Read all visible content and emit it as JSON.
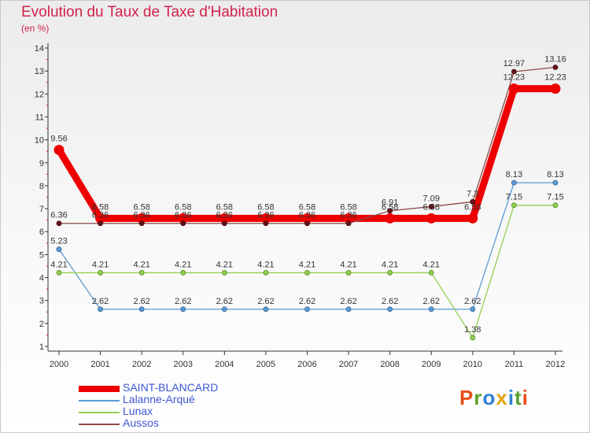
{
  "header": {
    "title": "Evolution du Taux de Taxe d'Habitation",
    "subtitle": "(en %)"
  },
  "brand": {
    "text": "Proxiti",
    "letter_colors": [
      "#e84d18",
      "#5aa02c",
      "#2f7fd0",
      "#e2a411",
      "#2f7fd0",
      "#5aa02c",
      "#e84d18"
    ]
  },
  "chart_data": {
    "type": "line",
    "title": "Evolution du Taux de Taxe d'Habitation",
    "ylabel": "(en %)",
    "xlabel": "",
    "ylim": [
      1,
      14
    ],
    "yticks": [
      1,
      2,
      3,
      4,
      5,
      6,
      7,
      8,
      9,
      10,
      11,
      12,
      13,
      14
    ],
    "x": [
      "2000",
      "2001",
      "2002",
      "2003",
      "2004",
      "2005",
      "2006",
      "2007",
      "2008",
      "2009",
      "2010",
      "2011",
      "2012"
    ],
    "grid": false,
    "legend_position": "bottom-left",
    "series": [
      {
        "name": "SAINT-BLANCARD",
        "color": "#ee0000",
        "values": [
          9.56,
          6.58,
          6.58,
          6.58,
          6.58,
          6.58,
          6.58,
          6.58,
          6.58,
          6.58,
          6.58,
          12.23,
          12.23
        ],
        "labels": [
          "9.56",
          "6.58",
          "6.58",
          "6.58",
          "6.58",
          "6.58",
          "6.58",
          "6.58",
          "6.58",
          "6.58",
          "6.58",
          "12.23",
          "12.23"
        ]
      },
      {
        "name": "Lalanne-Arqué",
        "color": "#5b9bd5",
        "values": [
          5.23,
          2.62,
          2.62,
          2.62,
          2.62,
          2.62,
          2.62,
          2.62,
          2.62,
          2.62,
          2.62,
          8.13,
          8.13
        ],
        "labels": [
          "5.23",
          "2.62",
          "2.62",
          "2.62",
          "2.62",
          "2.62",
          "2.62",
          "2.62",
          "2.62",
          "2.62",
          "2.62",
          "8.13",
          "8.13"
        ]
      },
      {
        "name": "Lunax",
        "color": "#92d050",
        "values": [
          4.21,
          4.21,
          4.21,
          4.21,
          4.21,
          4.21,
          4.21,
          4.21,
          4.21,
          4.21,
          1.38,
          7.15,
          7.15
        ],
        "labels": [
          "4.21",
          "4.21",
          "4.21",
          "4.21",
          "4.21",
          "4.21",
          "4.21",
          "4.21",
          "4.21",
          "4.21",
          "1.38",
          "7.15",
          "7.15"
        ]
      },
      {
        "name": "Aussos",
        "color": "#8b4a4a",
        "values": [
          6.36,
          6.36,
          6.36,
          6.36,
          6.36,
          6.36,
          6.36,
          6.36,
          6.91,
          7.09,
          7.3,
          12.97,
          13.16
        ],
        "labels": [
          "6.36",
          "6.36",
          "6.36",
          "6.36",
          "6.36",
          "6.36",
          "6.36",
          "6.36",
          "6.91",
          "7.09",
          "7.3",
          "12.97",
          "13.16"
        ]
      }
    ]
  }
}
